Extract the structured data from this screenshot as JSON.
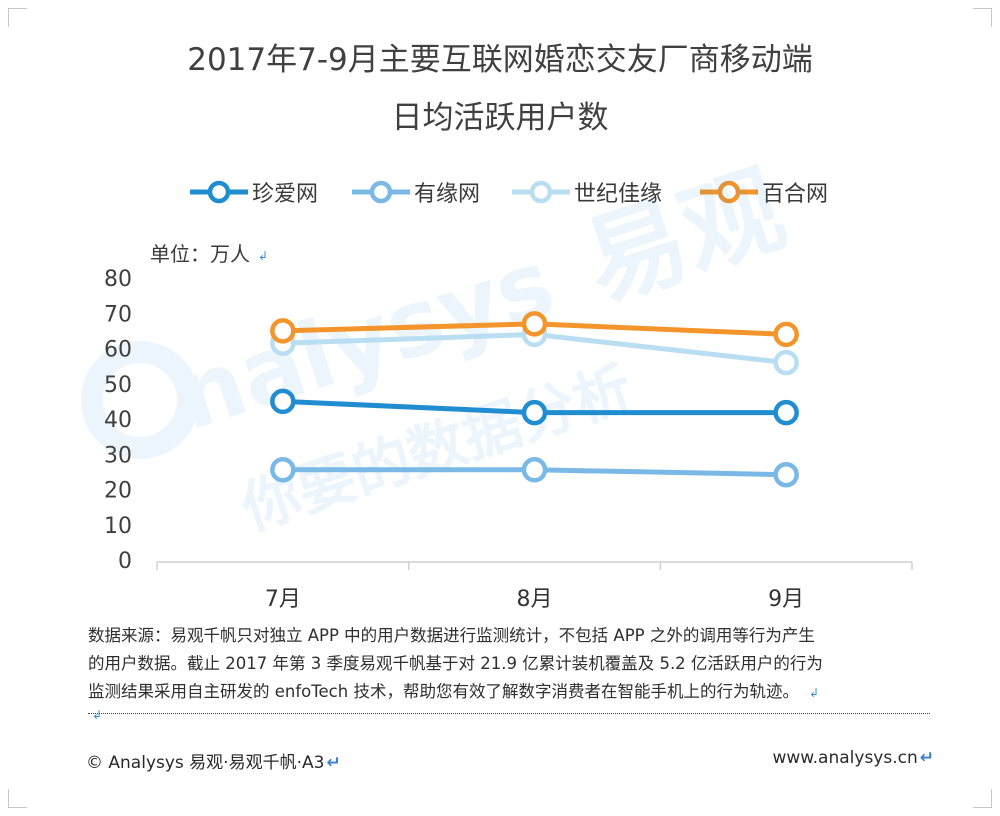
{
  "title_line1": "2017年7-9月主要互联网婚恋交友厂商移动端",
  "title_line2": "日均活跃用户数",
  "unit_label": "单位：万人",
  "source_lines": [
    "数据来源：易观千帆只对独立 APP 中的用户数据进行监测统计，不包括 APP 之外的调用等行为产生",
    "的用户数据。截止 2017 年第 3 季度易观千帆基于对 21.9 亿累计装机覆盖及 5.2 亿活跃用户的行为",
    "监测结果采用自主研发的 enfoTech 技术，帮助您有效了解数字消费者在智能手机上的行为轨迹。"
  ],
  "footer_left": "© Analysys  易观·易观千帆·A3",
  "footer_right": "www.analysys.cn",
  "watermark": {
    "brand_latin": "nalysys",
    "brand_cn": "易观",
    "slogan": "你要的数据分析"
  },
  "chart_data": {
    "type": "line",
    "categories": [
      "7月",
      "8月",
      "9月"
    ],
    "ylim": [
      0,
      80
    ],
    "yticks": [
      0,
      10,
      20,
      30,
      40,
      50,
      60,
      70,
      80
    ],
    "grid": false,
    "legend_position": "top",
    "series": [
      {
        "name": "珍爱网",
        "color": "#1f8dd0",
        "values": [
          45,
          41.8,
          41.8
        ]
      },
      {
        "name": "有缘网",
        "color": "#7ab8e6",
        "values": [
          25.6,
          25.6,
          24.2
        ]
      },
      {
        "name": "世纪佳缘",
        "color": "#b9def2",
        "values": [
          61.5,
          64,
          56
        ]
      },
      {
        "name": "百合网",
        "color": "#f3952a",
        "values": [
          65,
          67,
          64
        ]
      }
    ]
  }
}
